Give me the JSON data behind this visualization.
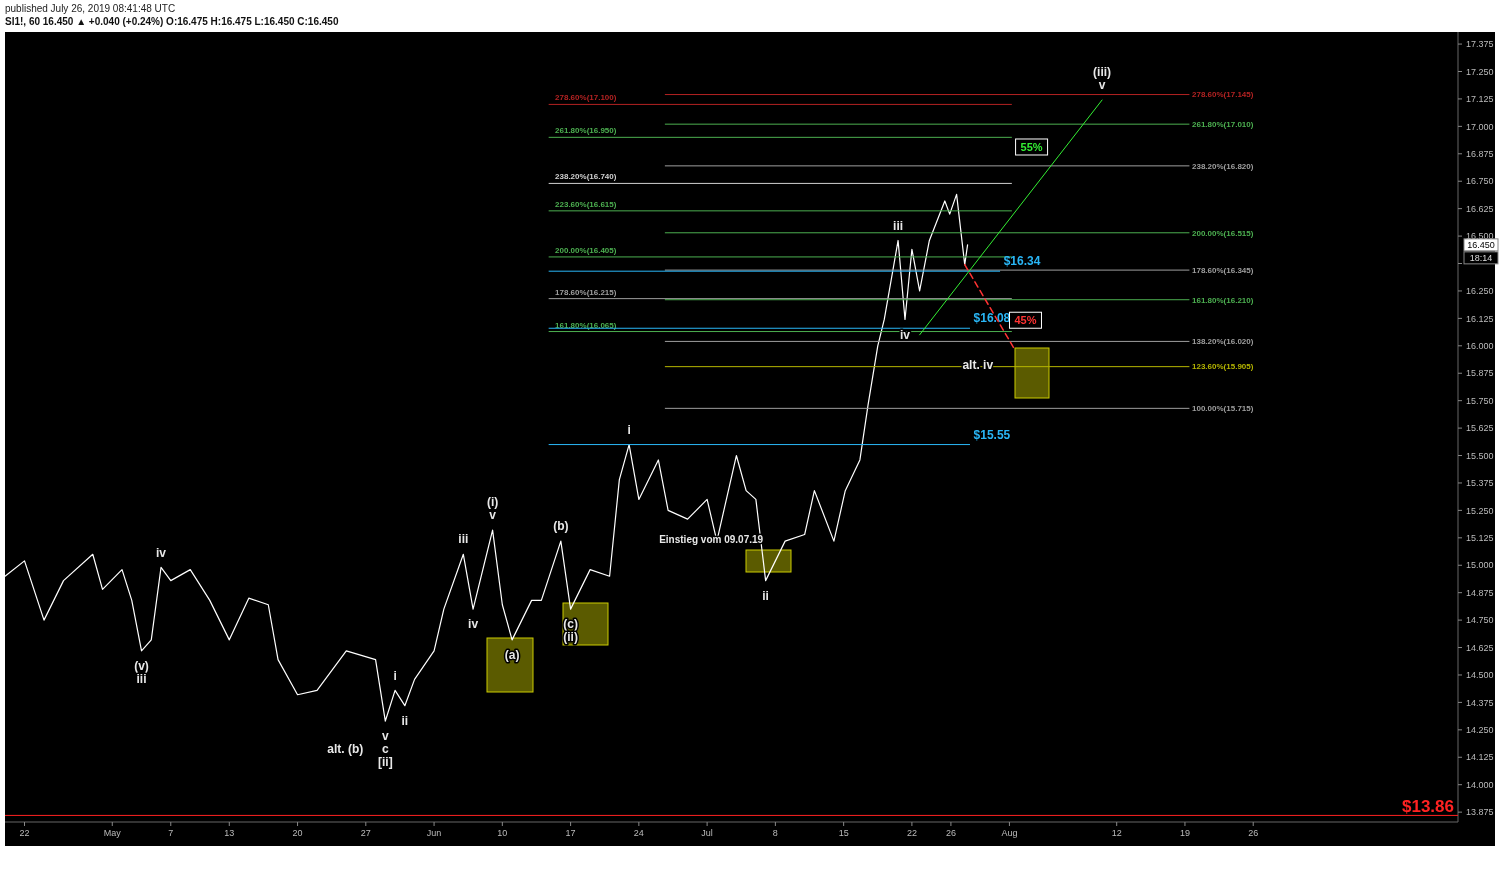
{
  "chart_data": {
    "type": "line",
    "title": "SI1!, 60  16.450 ▲ +0.040 (+0.24%) O:16.475 H:16.475 L:16.450 C:16.450",
    "subtitle": "published July 26, 2019 08:41:48 UTC",
    "xlim": [
      "2019-04-20",
      "2019-09-16"
    ],
    "xticks": [
      {
        "value": "2019-04-22",
        "label": "22"
      },
      {
        "value": "2019-05-01",
        "label": "May"
      },
      {
        "value": "2019-05-07",
        "label": "7"
      },
      {
        "value": "2019-05-13",
        "label": "13"
      },
      {
        "value": "2019-05-20",
        "label": "20"
      },
      {
        "value": "2019-05-27",
        "label": "27"
      },
      {
        "value": "2019-06-03",
        "label": "Jun"
      },
      {
        "value": "2019-06-10",
        "label": "10"
      },
      {
        "value": "2019-06-17",
        "label": "17"
      },
      {
        "value": "2019-06-24",
        "label": "24"
      },
      {
        "value": "2019-07-01",
        "label": "Jul"
      },
      {
        "value": "2019-07-08",
        "label": "8"
      },
      {
        "value": "2019-07-15",
        "label": "15"
      },
      {
        "value": "2019-07-22",
        "label": "22"
      },
      {
        "value": "2019-07-26",
        "label": "26"
      },
      {
        "value": "2019-08-01",
        "label": "Aug"
      },
      {
        "value": "2019-08-12",
        "label": "12"
      },
      {
        "value": "2019-08-19",
        "label": "19"
      },
      {
        "value": "2019-08-26",
        "label": "26"
      }
    ],
    "ylim": [
      13.83,
      17.43
    ],
    "yticks": [
      {
        "value": 13.875,
        "label": "13.875"
      },
      {
        "value": 14,
        "label": "14.000"
      },
      {
        "value": 14.125,
        "label": "14.125"
      },
      {
        "value": 14.25,
        "label": "14.250"
      },
      {
        "value": 14.375,
        "label": "14.375"
      },
      {
        "value": 14.5,
        "label": "14.500"
      },
      {
        "value": 14.625,
        "label": "14.625"
      },
      {
        "value": 14.75,
        "label": "14.750"
      },
      {
        "value": 14.875,
        "label": "14.875"
      },
      {
        "value": 15,
        "label": "15.000"
      },
      {
        "value": 15.125,
        "label": "15.125"
      },
      {
        "value": 15.25,
        "label": "15.250"
      },
      {
        "value": 15.375,
        "label": "15.375"
      },
      {
        "value": 15.5,
        "label": "15.500"
      },
      {
        "value": 15.625,
        "label": "15.625"
      },
      {
        "value": 15.75,
        "label": "15.750"
      },
      {
        "value": 15.875,
        "label": "15.875"
      },
      {
        "value": 16,
        "label": "16.000"
      },
      {
        "value": 16.125,
        "label": "16.125"
      },
      {
        "value": 16.25,
        "label": "16.250"
      },
      {
        "value": 16.375,
        "label": null
      },
      {
        "value": 16.5,
        "label": "16.500"
      },
      {
        "value": 16.625,
        "label": "16.625"
      },
      {
        "value": 16.75,
        "label": "16.750"
      },
      {
        "value": 16.875,
        "label": "16.875"
      },
      {
        "value": 17,
        "label": "17.000"
      },
      {
        "value": 17.125,
        "label": "17.125"
      },
      {
        "value": 17.25,
        "label": "17.250"
      },
      {
        "value": 17.375,
        "label": "17.375"
      }
    ],
    "legend": false,
    "series": [
      {
        "color": "#ffffff",
        "x": [
          "2019-04-20",
          "2019-04-22",
          "2019-04-24",
          "2019-04-26",
          "2019-04-29",
          "2019-04-30",
          "2019-05-02",
          "2019-05-03",
          "2019-05-04",
          "2019-05-05",
          "2019-05-06",
          "2019-05-07",
          "2019-05-09",
          "2019-05-11",
          "2019-05-13",
          "2019-05-15",
          "2019-05-17",
          "2019-05-18",
          "2019-05-20",
          "2019-05-22",
          "2019-05-25",
          "2019-05-28",
          "2019-05-29",
          "2019-05-30",
          "2019-05-31",
          "2019-06-01",
          "2019-06-03",
          "2019-06-04",
          "2019-06-06",
          "2019-06-07",
          "2019-06-08",
          "2019-06-09",
          "2019-06-10",
          "2019-06-11",
          "2019-06-13",
          "2019-06-14",
          "2019-06-16",
          "2019-06-17",
          "2019-06-19",
          "2019-06-21",
          "2019-06-22",
          "2019-06-23",
          "2019-06-24",
          "2019-06-26",
          "2019-06-27",
          "2019-06-29",
          "2019-07-01",
          "2019-07-02",
          "2019-07-04",
          "2019-07-05",
          "2019-07-06",
          "2019-07-07",
          "2019-07-09",
          "2019-07-11",
          "2019-07-12",
          "2019-07-14",
          "2019-07-15T04:00",
          "2019-07-16T16:00",
          "2019-07-17T12:00",
          "2019-07-18T12:00",
          "2019-07-19T04:00",
          "2019-07-20T14:00",
          "2019-07-21T07:00",
          "2019-07-22T00:00",
          "2019-07-22T19:00",
          "2019-07-23T19:00",
          "2019-07-25T09:00",
          "2019-07-25T21:00",
          "2019-07-26T14:00",
          "2019-07-27T10:00",
          "2019-07-27T17:00"
        ],
        "values": [
          14.95,
          15.02,
          14.75,
          14.93,
          15.05,
          14.89,
          14.98,
          14.84,
          14.61,
          14.66,
          14.99,
          14.93,
          14.98,
          14.84,
          14.66,
          14.85,
          14.82,
          14.57,
          14.41,
          14.43,
          14.61,
          14.57,
          14.29,
          14.43,
          14.36,
          14.48,
          14.61,
          14.8,
          15.05,
          14.8,
          14.98,
          15.16,
          14.82,
          14.66,
          14.84,
          14.84,
          15.11,
          14.8,
          14.98,
          14.95,
          15.39,
          15.55,
          15.3,
          15.48,
          15.25,
          15.21,
          15.3,
          15.11,
          15.5,
          15.34,
          15.3,
          14.93,
          15.11,
          15.14,
          15.34,
          15.11,
          15.34,
          15.48,
          15.73,
          16.0,
          16.12,
          16.48,
          16.12,
          16.44,
          16.25,
          16.48,
          16.66,
          16.6,
          16.69,
          16.37,
          16.46
        ]
      },
      {
        "name": "278.60%(17.100)",
        "color": "#b22222",
        "x": [
          "2019-06-14T19:00",
          "2019-08-01T05:00"
        ],
        "values": [
          17.1,
          17.1
        ]
      },
      {
        "name": "261.80%(16.950)",
        "color": "#4caf50",
        "x": [
          "2019-06-14T19:00",
          "2019-08-01T05:00"
        ],
        "values": [
          16.95,
          16.95
        ]
      },
      {
        "name": "238.20%(16.740)",
        "color": "#d0d0d0",
        "x": [
          "2019-06-14T19:00",
          "2019-08-01T05:00"
        ],
        "values": [
          16.74,
          16.74
        ]
      },
      {
        "name": "223.60%(16.615)",
        "color": "#4caf50",
        "x": [
          "2019-06-14T19:00",
          "2019-08-01T05:00"
        ],
        "values": [
          16.615,
          16.615
        ]
      },
      {
        "name": "200.00%(16.405)",
        "color": "#4caf50",
        "x": [
          "2019-06-14T19:00",
          "2019-08-01T05:00"
        ],
        "values": [
          16.405,
          16.405
        ]
      },
      {
        "name": "178.60%(16.215)",
        "color": "#9e9e9e",
        "x": [
          "2019-06-14T19:00",
          "2019-08-01T05:00"
        ],
        "values": [
          16.215,
          16.215
        ]
      },
      {
        "name": "161.80%(16.065)",
        "color": "#4caf50",
        "x": [
          "2019-06-14T19:00",
          "2019-08-01T05:00"
        ],
        "values": [
          16.065,
          16.065
        ]
      },
      {
        "name": "278.60%(17.145)",
        "color": "#b22222",
        "x": [
          "2019-06-26T17:00",
          "2019-08-19T10:00"
        ],
        "values": [
          17.145,
          17.145
        ]
      },
      {
        "name": "261.80%(17.010)",
        "color": "#4caf50",
        "x": [
          "2019-06-26T17:00",
          "2019-08-19T10:00"
        ],
        "values": [
          17.01,
          17.01
        ]
      },
      {
        "name": "238.20%(16.820)",
        "color": "#9e9e9e",
        "x": [
          "2019-06-26T17:00",
          "2019-08-19T10:00"
        ],
        "values": [
          16.82,
          16.82
        ]
      },
      {
        "name": "200.00%(16.515)",
        "color": "#4caf50",
        "x": [
          "2019-06-26T17:00",
          "2019-08-19T10:00"
        ],
        "values": [
          16.515,
          16.515
        ]
      },
      {
        "name": "178.60%(16.345)",
        "color": "#9e9e9e",
        "x": [
          "2019-06-26T17:00",
          "2019-08-19T10:00"
        ],
        "values": [
          16.345,
          16.345
        ]
      },
      {
        "name": "161.80%(16.210)",
        "color": "#4caf50",
        "x": [
          "2019-06-26T17:00",
          "2019-08-19T10:00"
        ],
        "values": [
          16.21,
          16.21
        ]
      },
      {
        "name": "138.20%(16.020)",
        "color": "#9e9e9e",
        "x": [
          "2019-06-26T17:00",
          "2019-08-19T10:00"
        ],
        "values": [
          16.02,
          16.02
        ]
      },
      {
        "name": "123.60%(15.905)",
        "color": "#b5b500",
        "x": [
          "2019-06-26T17:00",
          "2019-08-19T10:00"
        ],
        "values": [
          15.905,
          15.905
        ]
      },
      {
        "name": "100.00%(15.715)",
        "color": "#9e9e9e",
        "x": [
          "2019-06-26T17:00",
          "2019-08-19T10:00"
        ],
        "values": [
          15.715,
          15.715
        ]
      },
      {
        "name": "$16.34",
        "color": "#29b6f6",
        "x": [
          "2019-06-14T19:00",
          "2019-07-31T00:00"
        ],
        "values": [
          16.34,
          16.34
        ]
      },
      {
        "name": "$16.08",
        "color": "#29b6f6",
        "x": [
          "2019-06-14T19:00",
          "2019-07-27T22:00"
        ],
        "values": [
          16.08,
          16.08
        ]
      },
      {
        "name": "$15.55",
        "color": "#29b6f6",
        "x": [
          "2019-06-14T19:00",
          "2019-07-27T22:00"
        ],
        "values": [
          15.55,
          15.55
        ]
      },
      {
        "name": "55%",
        "color": "#33ee33",
        "x": [
          "2019-07-22T19:00",
          "2019-08-10T12:00"
        ],
        "values": [
          16.05,
          17.12
        ]
      },
      {
        "name": "45%",
        "color": "#ff3333",
        "line_style": "dashed",
        "x": [
          "2019-07-27T10:00",
          "2019-08-01T14:00"
        ],
        "values": [
          16.37,
          15.98
        ]
      }
    ],
    "ref_lines": [
      {
        "axis": "y",
        "value": 13.86,
        "label": "$13.86",
        "color": "#ff2222"
      }
    ],
    "annotations": [
      "16.450",
      "18:14",
      {
        "text": "(iii)",
        "x": "2019-08-10T12:00",
        "y": 17.12
      },
      {
        "text": "v",
        "x": "2019-08-10T12:00",
        "y": 17.12
      },
      {
        "text": "alt. iv",
        "x": "2019-08-01T14:00",
        "y": 15.98
      },
      {
        "text": "iii",
        "x": "2019-07-20T14:00",
        "y": 16.48
      },
      {
        "text": "iv",
        "x": "2019-07-21T07:00",
        "y": 16.12
      },
      {
        "text": "ii",
        "x": "2019-07-07",
        "y": 14.93
      },
      {
        "text": "Einstieg vom 09.07.19",
        "x": "2019-07-09",
        "y": 15.11
      },
      {
        "text": "i",
        "x": "2019-06-23",
        "y": 15.55
      },
      {
        "text": "(b)",
        "x": "2019-06-16",
        "y": 15.11
      },
      {
        "text": "(c)",
        "x": "2019-06-17",
        "y": 14.8
      },
      {
        "text": "(ii)",
        "x": "2019-06-17",
        "y": 14.8
      },
      {
        "text": "(a)",
        "x": "2019-06-11",
        "y": 14.66
      },
      {
        "text": "(i)",
        "x": "2019-06-09",
        "y": 15.16
      },
      {
        "text": "v",
        "x": "2019-06-09",
        "y": 15.16
      },
      {
        "text": "iii",
        "x": "2019-06-06",
        "y": 15.05
      },
      {
        "text": "iv",
        "x": "2019-06-07",
        "y": 14.8
      },
      {
        "text": "i",
        "x": "2019-05-30",
        "y": 14.43
      },
      {
        "text": "ii",
        "x": "2019-05-31",
        "y": 14.36
      },
      {
        "text": "v",
        "x": "2019-05-29",
        "y": 14.29
      },
      {
        "text": "c",
        "x": "2019-05-29",
        "y": 14.29
      },
      {
        "text": "alt. (b)",
        "x": "2019-05-29",
        "y": 14.29
      },
      {
        "text": "[ii]",
        "x": "2019-05-29",
        "y": 14.29
      },
      {
        "text": "iv",
        "x": "2019-05-06",
        "y": 14.99
      },
      {
        "text": "(v)",
        "x": "2019-05-04",
        "y": 14.61
      },
      {
        "text": "iii",
        "x": "2019-05-04",
        "y": 14.61
      }
    ]
  }
}
